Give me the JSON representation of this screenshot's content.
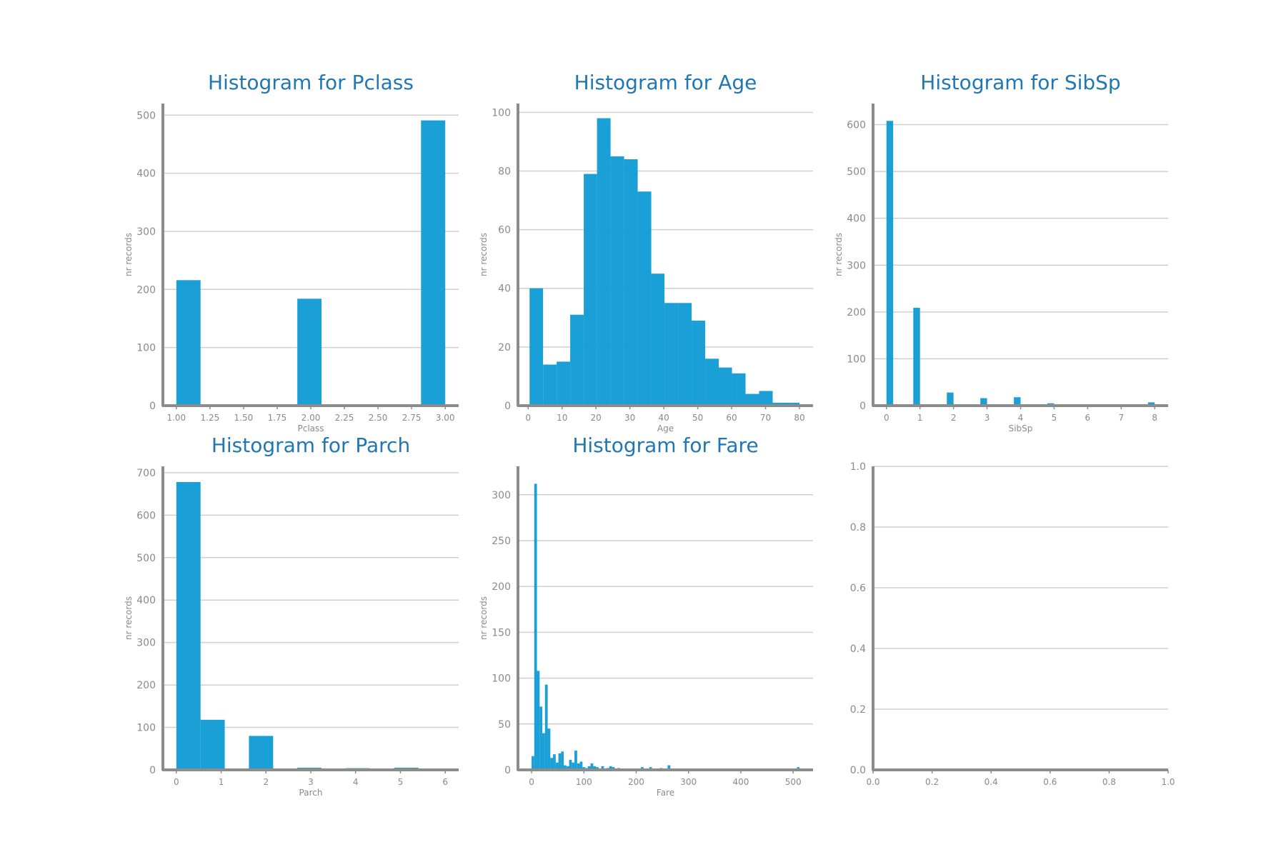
{
  "colors": {
    "bar": "#1a9fd6",
    "title": "#1f77b4",
    "axis": "#8c8c8c",
    "grid": "#cfcfcf",
    "text": "#8a8a8a"
  },
  "chart_data": [
    {
      "type": "bar",
      "title": "Histogram for Pclass",
      "xlabel": "Pclass",
      "ylabel": "nr records",
      "xlim": [
        0.9,
        3.1
      ],
      "ylim": [
        0,
        520
      ],
      "xticks": [
        1.0,
        1.25,
        1.5,
        1.75,
        2.0,
        2.25,
        2.5,
        2.75,
        3.0
      ],
      "xtick_labels": [
        "1.00",
        "1.25",
        "1.50",
        "1.75",
        "2.00",
        "2.25",
        "2.50",
        "2.75",
        "3.00"
      ],
      "yticks": [
        0,
        100,
        200,
        300,
        400,
        500
      ],
      "ytick_labels": [
        "0",
        "100",
        "200",
        "300",
        "400",
        "500"
      ],
      "bins": [
        [
          1.0,
          1.18,
          216
        ],
        [
          1.9,
          2.08,
          184
        ],
        [
          2.82,
          3.0,
          491
        ]
      ],
      "grid": true
    },
    {
      "type": "bar",
      "title": "Histogram for Age",
      "xlabel": "Age",
      "ylabel": "nr records",
      "xlim": [
        -3,
        84
      ],
      "ylim": [
        0,
        103
      ],
      "xticks": [
        0,
        10,
        20,
        30,
        40,
        50,
        60,
        70,
        80
      ],
      "xtick_labels": [
        "0",
        "10",
        "20",
        "30",
        "40",
        "50",
        "60",
        "70",
        "80"
      ],
      "yticks": [
        0,
        20,
        40,
        60,
        80,
        100
      ],
      "ytick_labels": [
        "0",
        "20",
        "40",
        "60",
        "80",
        "100"
      ],
      "bins": [
        [
          0.42,
          4.4,
          40
        ],
        [
          4.4,
          8.4,
          14
        ],
        [
          8.4,
          12.4,
          15
        ],
        [
          12.4,
          16.4,
          31
        ],
        [
          16.4,
          20.3,
          79
        ],
        [
          20.3,
          24.3,
          98
        ],
        [
          24.3,
          28.3,
          85
        ],
        [
          28.3,
          32.3,
          84
        ],
        [
          32.3,
          36.3,
          73
        ],
        [
          36.3,
          40.2,
          45
        ],
        [
          40.2,
          44.2,
          35
        ],
        [
          44.2,
          48.2,
          35
        ],
        [
          48.2,
          52.2,
          29
        ],
        [
          52.2,
          56.2,
          16
        ],
        [
          56.2,
          60.1,
          13
        ],
        [
          60.1,
          64.1,
          11
        ],
        [
          64.1,
          68.1,
          4
        ],
        [
          68.1,
          72.1,
          5
        ],
        [
          72.1,
          76.1,
          1
        ],
        [
          76.1,
          80.0,
          1
        ]
      ],
      "grid": true
    },
    {
      "type": "bar",
      "title": "Histogram for SibSp",
      "xlabel": "SibSp",
      "ylabel": "nr records",
      "xlim": [
        -0.4,
        8.4
      ],
      "ylim": [
        0,
        645
      ],
      "xticks": [
        0,
        1,
        2,
        3,
        4,
        5,
        6,
        7,
        8
      ],
      "xtick_labels": [
        "0",
        "1",
        "2",
        "3",
        "4",
        "5",
        "6",
        "7",
        "8"
      ],
      "yticks": [
        0,
        100,
        200,
        300,
        400,
        500,
        600
      ],
      "ytick_labels": [
        "0",
        "100",
        "200",
        "300",
        "400",
        "500",
        "600"
      ],
      "bins": [
        [
          0.0,
          0.2,
          608
        ],
        [
          0.8,
          1.0,
          209
        ],
        [
          1.8,
          2.0,
          28
        ],
        [
          2.8,
          3.0,
          16
        ],
        [
          3.8,
          4.0,
          18
        ],
        [
          4.8,
          5.0,
          5
        ],
        [
          7.8,
          8.0,
          7
        ]
      ],
      "grid": true
    },
    {
      "type": "bar",
      "title": "Histogram for Parch",
      "xlabel": "Parch",
      "ylabel": "nr records",
      "xlim": [
        -0.3,
        6.3
      ],
      "ylim": [
        0,
        715
      ],
      "xticks": [
        0,
        1,
        2,
        3,
        4,
        5,
        6
      ],
      "xtick_labels": [
        "0",
        "1",
        "2",
        "3",
        "4",
        "5",
        "6"
      ],
      "yticks": [
        0,
        100,
        200,
        300,
        400,
        500,
        600,
        700
      ],
      "ytick_labels": [
        "0",
        "100",
        "200",
        "300",
        "400",
        "500",
        "600",
        "700"
      ],
      "bins": [
        [
          0.0,
          0.54,
          678
        ],
        [
          0.54,
          1.08,
          118
        ],
        [
          1.62,
          2.16,
          80
        ],
        [
          2.7,
          3.24,
          5
        ],
        [
          3.78,
          4.32,
          4
        ],
        [
          4.86,
          5.4,
          5
        ],
        [
          5.94,
          6.0,
          1
        ]
      ],
      "grid": true
    },
    {
      "type": "bar",
      "title": "Histogram for Fare",
      "xlabel": "Fare",
      "ylabel": "nr records",
      "xlim": [
        -26,
        538
      ],
      "ylim": [
        0,
        331
      ],
      "xticks": [
        0,
        100,
        200,
        300,
        400,
        500
      ],
      "xtick_labels": [
        "0",
        "100",
        "200",
        "300",
        "400",
        "500"
      ],
      "yticks": [
        0,
        50,
        100,
        150,
        200,
        250,
        300
      ],
      "ytick_labels": [
        "0",
        "50",
        "100",
        "150",
        "200",
        "250",
        "300"
      ],
      "bins": [
        [
          0,
          5.12,
          15
        ],
        [
          5.12,
          10.25,
          312
        ],
        [
          10.25,
          15.37,
          108
        ],
        [
          15.37,
          20.49,
          69
        ],
        [
          20.49,
          25.62,
          40
        ],
        [
          25.62,
          30.74,
          93
        ],
        [
          30.74,
          35.86,
          45
        ],
        [
          35.86,
          40.99,
          13
        ],
        [
          40.99,
          46.11,
          17
        ],
        [
          46.11,
          51.23,
          8
        ],
        [
          51.23,
          56.36,
          18
        ],
        [
          56.36,
          61.48,
          20
        ],
        [
          61.48,
          66.6,
          5
        ],
        [
          66.6,
          71.73,
          4
        ],
        [
          71.73,
          76.85,
          11
        ],
        [
          76.85,
          81.97,
          8
        ],
        [
          81.97,
          87.1,
          21
        ],
        [
          87.1,
          92.22,
          7
        ],
        [
          92.22,
          97.34,
          9
        ],
        [
          97.34,
          102.47,
          3
        ],
        [
          102.47,
          107.59,
          2
        ],
        [
          107.59,
          112.71,
          4
        ],
        [
          112.71,
          117.84,
          7
        ],
        [
          117.84,
          122.96,
          4
        ],
        [
          122.96,
          128.08,
          3
        ],
        [
          133.2,
          138.33,
          4
        ],
        [
          143.45,
          148.57,
          2
        ],
        [
          148.57,
          153.7,
          4
        ],
        [
          153.7,
          158.82,
          3
        ],
        [
          163.94,
          169.07,
          2
        ],
        [
          209.0,
          214.1,
          3
        ],
        [
          225.0,
          230.1,
          3
        ],
        [
          245.0,
          250.1,
          2
        ],
        [
          260.0,
          265.2,
          5
        ],
        [
          507.2,
          512.3,
          3
        ]
      ],
      "grid": true
    },
    {
      "type": "bar",
      "title": "",
      "xlabel": "",
      "ylabel": "",
      "xlim": [
        0.0,
        1.0
      ],
      "ylim": [
        0.0,
        1.0
      ],
      "xticks": [
        0.0,
        0.2,
        0.4,
        0.6,
        0.8,
        1.0
      ],
      "xtick_labels": [
        "0.0",
        "0.2",
        "0.4",
        "0.6",
        "0.8",
        "1.0"
      ],
      "yticks": [
        0.0,
        0.2,
        0.4,
        0.6,
        0.8,
        1.0
      ],
      "ytick_labels": [
        "0.0",
        "0.2",
        "0.4",
        "0.6",
        "0.8",
        "1.0"
      ],
      "bins": [],
      "grid": true
    }
  ]
}
